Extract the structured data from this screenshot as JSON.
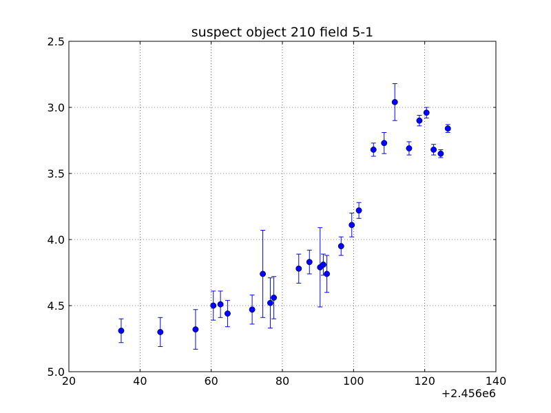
{
  "chart_data": {
    "type": "scatter",
    "title": "suspect object 210 field 5-1",
    "xlabel": "",
    "ylabel": "",
    "x_offset_label": "+2.456e6",
    "xlim": [
      20,
      140
    ],
    "ylim": [
      5.0,
      2.5
    ],
    "y_inverted": true,
    "grid": true,
    "x_ticks": [
      "20",
      "40",
      "60",
      "80",
      "100",
      "120",
      "140"
    ],
    "y_ticks": [
      "2.5",
      "3.0",
      "3.5",
      "4.0",
      "4.5",
      "5.0"
    ],
    "series": [
      {
        "marker": "circle",
        "color": "#0000ff",
        "points": [
          {
            "x": 34.7,
            "y": 4.69,
            "err": 0.09
          },
          {
            "x": 45.7,
            "y": 4.7,
            "err": 0.11
          },
          {
            "x": 55.6,
            "y": 4.68,
            "err": 0.15
          },
          {
            "x": 60.6,
            "y": 4.5,
            "err": 0.11
          },
          {
            "x": 62.6,
            "y": 4.49,
            "err": 0.1
          },
          {
            "x": 64.6,
            "y": 4.56,
            "err": 0.1
          },
          {
            "x": 71.5,
            "y": 4.53,
            "err": 0.11
          },
          {
            "x": 74.5,
            "y": 4.26,
            "err": 0.33
          },
          {
            "x": 76.6,
            "y": 4.48,
            "err": 0.19
          },
          {
            "x": 77.6,
            "y": 4.44,
            "err": 0.16
          },
          {
            "x": 84.6,
            "y": 4.22,
            "err": 0.11
          },
          {
            "x": 87.6,
            "y": 4.17,
            "err": 0.09
          },
          {
            "x": 90.6,
            "y": 4.21,
            "err": 0.3
          },
          {
            "x": 91.5,
            "y": 4.19,
            "err": 0.08
          },
          {
            "x": 92.5,
            "y": 4.26,
            "err": 0.14
          },
          {
            "x": 96.5,
            "y": 4.05,
            "err": 0.07
          },
          {
            "x": 99.5,
            "y": 3.89,
            "err": 0.09
          },
          {
            "x": 101.5,
            "y": 3.78,
            "err": 0.06
          },
          {
            "x": 105.6,
            "y": 3.32,
            "err": 0.05
          },
          {
            "x": 108.6,
            "y": 3.27,
            "err": 0.08
          },
          {
            "x": 111.6,
            "y": 2.96,
            "err": 0.14
          },
          {
            "x": 115.6,
            "y": 3.31,
            "err": 0.05
          },
          {
            "x": 118.5,
            "y": 3.1,
            "err": 0.04
          },
          {
            "x": 120.5,
            "y": 3.04,
            "err": 0.04
          },
          {
            "x": 122.5,
            "y": 3.32,
            "err": 0.04
          },
          {
            "x": 124.5,
            "y": 3.35,
            "err": 0.03
          },
          {
            "x": 126.5,
            "y": 3.16,
            "err": 0.03
          }
        ]
      }
    ]
  }
}
